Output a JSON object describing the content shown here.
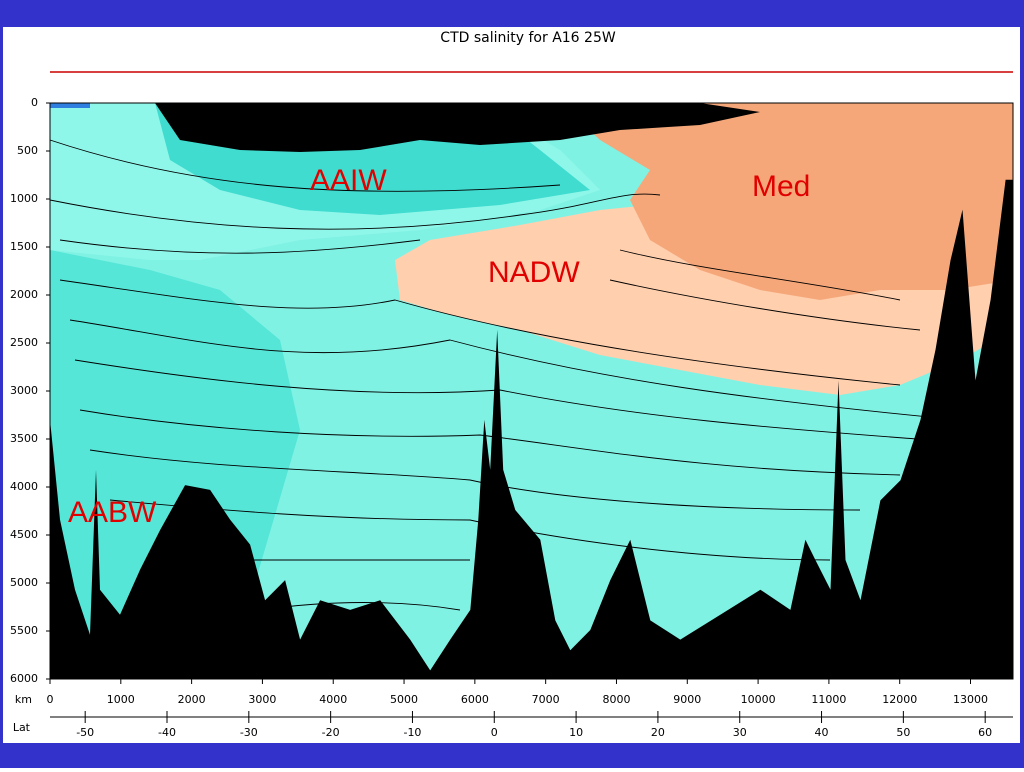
{
  "chart_data": {
    "type": "section",
    "title": "CTD salinity for A16 25W",
    "xlabel": "km",
    "x2label": "Lat",
    "xlim": [
      0,
      13600
    ],
    "xticks": [
      0,
      1000,
      2000,
      3000,
      4000,
      5000,
      6000,
      7000,
      8000,
      9000,
      10000,
      11000,
      12000,
      13000
    ],
    "x2lim": [
      -54.3,
      63.4
    ],
    "x2ticks": [
      -50,
      -40,
      -30,
      -20,
      -10,
      0,
      10,
      20,
      30,
      40,
      50,
      60
    ],
    "ylim": [
      0,
      6000
    ],
    "yticks": [
      0,
      500,
      1000,
      1500,
      2000,
      2500,
      3000,
      3500,
      4000,
      4500,
      5000,
      5500,
      6000
    ],
    "invert_y": true,
    "color": "#000000",
    "x": [
      0,
      141,
      353,
      565,
      650,
      706,
      989,
      1272,
      1554,
      1908,
      2261,
      2543,
      2826,
      3038,
      3320,
      3532,
      3815,
      4239,
      4663,
      5087,
      5370,
      5652,
      5935,
      6048,
      6133,
      6217,
      6316,
      6401,
      6571,
      6924,
      7136,
      7348,
      7630,
      7913,
      8195,
      8478,
      8902,
      9467,
      10033,
      10456,
      10668,
      10810,
      11022,
      11135,
      11234,
      11446,
      11728,
      12011,
      12294,
      12506,
      12718,
      12887,
      13071,
      13283,
      13495,
      13600
    ],
    "values": [
      3300,
      4340,
      5070,
      5540,
      3820,
      5070,
      5330,
      4860,
      4450,
      3980,
      4030,
      4340,
      4600,
      5180,
      4970,
      5590,
      5180,
      5280,
      5180,
      5590,
      5910,
      5590,
      5280,
      4340,
      3300,
      3820,
      2360,
      3820,
      4240,
      4550,
      5390,
      5700,
      5490,
      4970,
      4550,
      5390,
      5590,
      5330,
      5070,
      5280,
      4550,
      4760,
      5070,
      2890,
      4760,
      5180,
      4140,
      3930,
      3300,
      2570,
      1640,
      1110,
      2890,
      2050,
      800,
      800
    ],
    "annotations": [
      "AAIW",
      "NADW",
      "Med",
      "AABW"
    ]
  }
}
